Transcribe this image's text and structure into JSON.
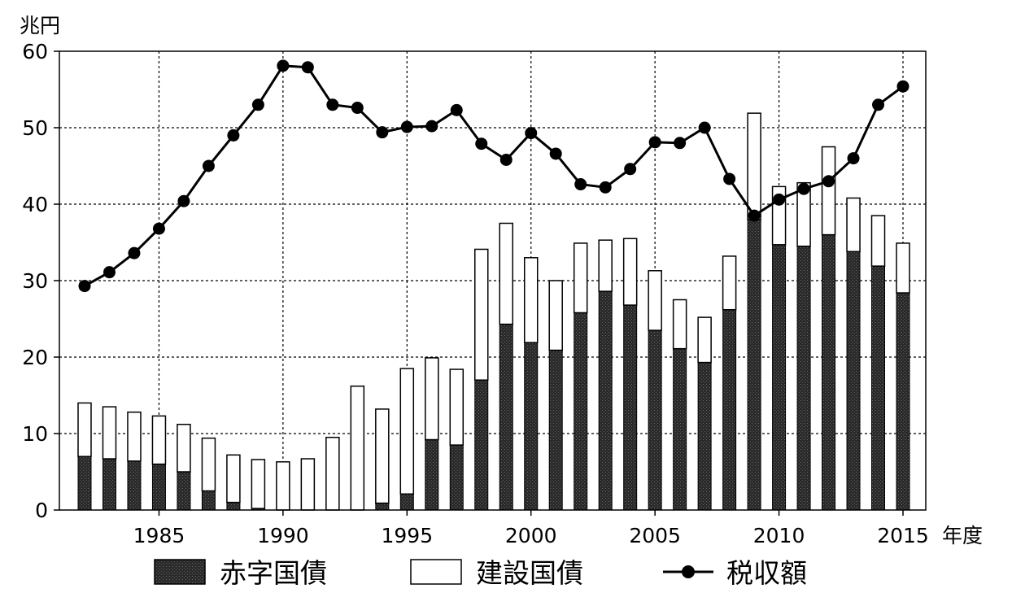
{
  "chart_data": {
    "type": "bar",
    "stacked": true,
    "y_unit": "兆円",
    "x_unit": "年度",
    "ylim": [
      0,
      60
    ],
    "yticks": [
      0,
      10,
      20,
      30,
      40,
      50,
      60
    ],
    "xticks": [
      1985,
      1990,
      1995,
      2000,
      2005,
      2010,
      2015
    ],
    "xlim": [
      1981,
      2016
    ],
    "grid": true,
    "legend_position": "bottom",
    "x": [
      1982,
      1983,
      1984,
      1985,
      1986,
      1987,
      1988,
      1989,
      1990,
      1991,
      1992,
      1993,
      1994,
      1995,
      1996,
      1997,
      1998,
      1999,
      2000,
      2001,
      2002,
      2003,
      2004,
      2005,
      2006,
      2007,
      2008,
      2009,
      2010,
      2011,
      2012,
      2013,
      2014,
      2015
    ],
    "series": [
      {
        "name": "赤字国債",
        "type": "bar",
        "color": "#222222",
        "values": [
          7.0,
          6.7,
          6.4,
          6.0,
          5.0,
          2.5,
          1.0,
          0.2,
          0,
          0,
          0,
          0,
          0.9,
          2.1,
          9.2,
          8.5,
          17.0,
          24.3,
          21.9,
          20.9,
          25.8,
          28.6,
          26.8,
          23.5,
          21.1,
          19.3,
          26.2,
          38.0,
          34.7,
          34.5,
          36.0,
          33.8,
          31.9,
          28.4
        ]
      },
      {
        "name": "建設国債",
        "type": "bar",
        "color": "#ffffff",
        "values": [
          7.0,
          6.8,
          6.4,
          6.3,
          6.2,
          6.9,
          6.2,
          6.4,
          6.3,
          6.7,
          9.5,
          16.2,
          12.3,
          16.4,
          10.7,
          9.9,
          17.1,
          13.2,
          11.1,
          9.1,
          9.1,
          6.7,
          8.7,
          7.8,
          6.4,
          5.9,
          7.0,
          13.9,
          7.6,
          8.3,
          11.5,
          7.0,
          6.6,
          6.5
        ]
      },
      {
        "name": "税収額",
        "type": "line",
        "color": "#000000",
        "values": [
          29.3,
          31.1,
          33.6,
          36.8,
          40.4,
          45.0,
          49.0,
          53.0,
          58.1,
          57.9,
          53.0,
          52.6,
          49.4,
          50.1,
          50.2,
          52.3,
          47.9,
          45.8,
          49.3,
          46.6,
          42.6,
          42.2,
          44.6,
          48.1,
          48.0,
          50.0,
          43.3,
          38.5,
          40.6,
          42.0,
          43.0,
          46.0,
          53.0,
          55.4
        ]
      }
    ]
  }
}
